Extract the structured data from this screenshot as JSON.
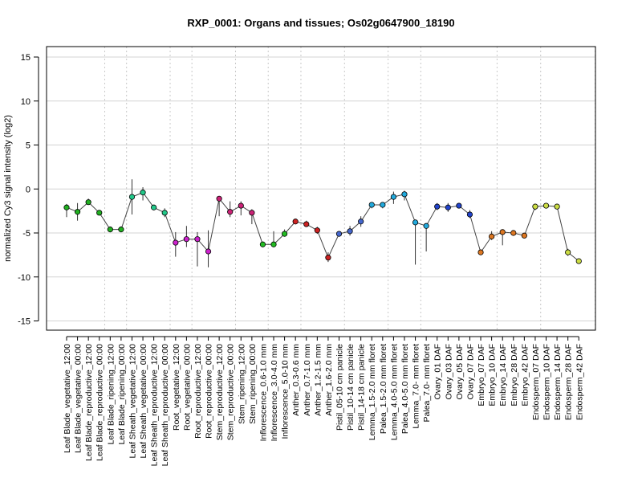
{
  "chart_data": {
    "type": "line",
    "title": "RXP_0001: Organs and tissues; Os02g0647900_18190",
    "xlabel": "",
    "ylabel": "normalized Cy3 signal intensity (log2)",
    "ylim": [
      -15,
      15
    ],
    "yticks": [
      -15,
      -10,
      -5,
      0,
      5,
      10,
      15
    ],
    "grid": "horizontal gridlines at y ticks; vertical dotted lines between sample groups",
    "group_separators_after_index": [
      3,
      5,
      9,
      11,
      15,
      18,
      21,
      25,
      29,
      32,
      39,
      43,
      48
    ],
    "categories": [
      "Leaf Blade_vegetative_12:00",
      "Leaf Blade_vegetative_00:00",
      "Leaf Blade_reproductive_12:00",
      "Leaf Blade_reproductive_00:00",
      "Leaf Blade_ripening_12:00",
      "Leaf Blade_ripening_00:00",
      "Leaf Sheath_vegetative_12:00",
      "Leaf Sheath_vegetative_00:00",
      "Leaf Sheath_reproductive_12:00",
      "Leaf Sheath_reproductive_00:00",
      "Root_vegetative_12:00",
      "Root_vegetative_00:00",
      "Root_reproductive_12:00",
      "Root_reproductive_00:00",
      "Stem_reproductive_12:00",
      "Stem_reproductive_00:00",
      "Stem_ripening_12:00",
      "Stem_ripening_00:00",
      "Inflorescence_0.6-1.0 mm",
      "Inflorescence_3.0-4.0 mm",
      "Inflorescence_5.0-10 mm",
      "Anther_0.3-0.6 mm",
      "Anther_0.7-1.0 mm",
      "Anther_1.2-1.5 mm",
      "Anther_1.6-2.0 mm",
      "Pistil_05-10 cm panicle",
      "Pistil_10-14 cm panicle",
      "Pistil_14-18 cm panicle",
      "Lemma_1.5-2.0 mm floret",
      "Palea_1.5-2.0 mm floret",
      "Lemma_4.0-5.0 mm floret",
      "Palea_4.0-5.0 mm floret",
      "Lemma_7.0- mm floret",
      "Palea_7.0- mm floret",
      "Ovary_01 DAF",
      "Ovary_03 DAF",
      "Ovary_05 DAF",
      "Ovary_07 DAF",
      "Embryo_07 DAF",
      "Embryo_10 DAF",
      "Embryo_14 DAF",
      "Embryo_28 DAF",
      "Embryo_42 DAF",
      "Endosperm_07 DAF",
      "Endosperm_10 DAF",
      "Endosperm_14 DAF",
      "Endosperm_28 DAF",
      "Endosperm_42 DAF"
    ],
    "series": [
      {
        "values": [
          -2.1,
          -2.6,
          -1.5,
          -2.7,
          -4.6,
          -4.6,
          -0.9,
          -0.4,
          -2.1,
          -2.7,
          -6.1,
          -5.7,
          -5.7,
          -7.1,
          -1.1,
          -2.6,
          -1.9,
          -2.7,
          -6.3,
          -6.3,
          -5.1,
          -3.7,
          -4.0,
          -4.7,
          -7.8,
          -5.1,
          -4.8,
          -3.7,
          -1.8,
          -1.8,
          -0.9,
          -0.6,
          -3.8,
          -4.2,
          -2.0,
          -2.1,
          -1.9,
          -2.9,
          -7.2,
          -5.4,
          -4.9,
          -5.0,
          -5.3,
          -2.0,
          -1.9,
          -2.0,
          -7.2,
          -8.2
        ],
        "error_low": [
          -3.2,
          -3.6,
          -1.8,
          -3.0,
          -4.8,
          -4.9,
          -2.9,
          -1.3,
          -2.3,
          -3.2,
          -7.7,
          -6.6,
          -8.8,
          -8.9,
          -3.1,
          -3.2,
          -3.0,
          -4.0,
          -6.5,
          -6.6,
          -5.4,
          -3.9,
          -4.3,
          -5.1,
          -8.3,
          -5.4,
          -5.3,
          -4.3,
          -2.2,
          -2.2,
          -1.7,
          -1.3,
          -8.6,
          -7.1,
          -2.4,
          -2.6,
          -2.2,
          -3.3,
          -7.5,
          -5.8,
          -6.4,
          -5.2,
          -5.6,
          -2.4,
          -2.2,
          -2.2,
          -7.6,
          -8.4
        ],
        "error_high": [
          -1.7,
          -1.6,
          -1.1,
          -2.4,
          -4.5,
          -4.4,
          1.1,
          0.2,
          -1.9,
          -2.2,
          -4.9,
          -4.2,
          -4.9,
          -4.7,
          -0.8,
          -1.4,
          -1.4,
          -2.3,
          -6.1,
          -4.8,
          -4.6,
          -3.5,
          -3.6,
          -4.3,
          -7.2,
          -4.9,
          -4.2,
          -3.1,
          -1.5,
          -1.5,
          -0.3,
          -0.2,
          -3.5,
          -3.9,
          -1.6,
          -1.6,
          -1.7,
          -2.4,
          -7.0,
          -4.8,
          -4.6,
          -4.8,
          -5.0,
          -1.8,
          -1.7,
          -1.8,
          -6.8,
          -8.0
        ],
        "colors": [
          "#21b021",
          "#21b021",
          "#21b021",
          "#21b021",
          "#21b021",
          "#21b021",
          "#22c98a",
          "#22c98a",
          "#22c98a",
          "#22c98a",
          "#cc22cc",
          "#cc22cc",
          "#cc22cc",
          "#cc22cc",
          "#cc2277",
          "#cc2277",
          "#cc2277",
          "#cc2277",
          "#22bb22",
          "#22bb22",
          "#22bb22",
          "#cc2222",
          "#cc2222",
          "#cc2222",
          "#cc2222",
          "#4466cc",
          "#4466cc",
          "#4466cc",
          "#22aadd",
          "#22aadd",
          "#22aadd",
          "#22aadd",
          "#22aadd",
          "#22aadd",
          "#2244cc",
          "#2244cc",
          "#2244cc",
          "#2244cc",
          "#dd7722",
          "#dd7722",
          "#dd7722",
          "#dd7722",
          "#dd7722",
          "#ccdd44",
          "#ccdd44",
          "#ccdd44",
          "#ccdd44",
          "#ccdd44"
        ]
      }
    ]
  }
}
